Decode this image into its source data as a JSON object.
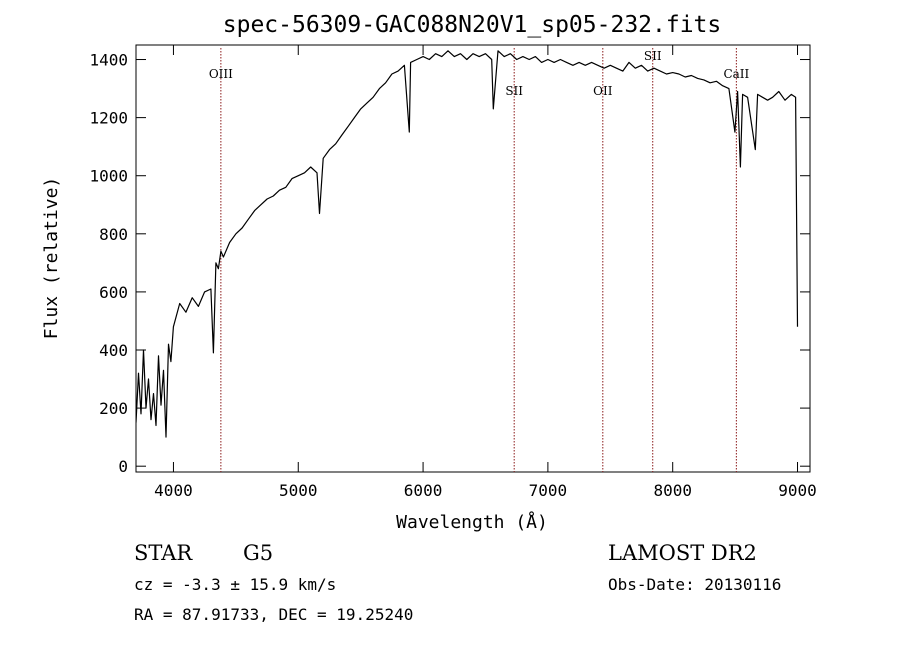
{
  "chart_data": {
    "type": "line",
    "title": "spec-56309-GAC088N20V1_sp05-232.fits",
    "xlabel": "Wavelength (Å)",
    "ylabel": "Flux (relative)",
    "xlim": [
      3700,
      9100
    ],
    "ylim": [
      -20,
      1450
    ],
    "xticks": [
      4000,
      5000,
      6000,
      7000,
      8000,
      9000
    ],
    "yticks": [
      0,
      200,
      400,
      600,
      800,
      1000,
      1200,
      1400
    ],
    "grid": false,
    "series": [
      {
        "color": "#000000",
        "x": [
          3700,
          3720,
          3740,
          3760,
          3780,
          3800,
          3820,
          3840,
          3860,
          3880,
          3900,
          3920,
          3940,
          3960,
          3980,
          4000,
          4050,
          4100,
          4150,
          4200,
          4250,
          4300,
          4320,
          4340,
          4360,
          4380,
          4400,
          4450,
          4500,
          4550,
          4600,
          4650,
          4700,
          4750,
          4800,
          4850,
          4900,
          4950,
          5000,
          5050,
          5100,
          5150,
          5170,
          5200,
          5250,
          5300,
          5350,
          5400,
          5450,
          5500,
          5550,
          5600,
          5650,
          5700,
          5750,
          5800,
          5850,
          5890,
          5900,
          5950,
          6000,
          6050,
          6100,
          6150,
          6200,
          6250,
          6300,
          6350,
          6400,
          6450,
          6500,
          6550,
          6563,
          6600,
          6650,
          6700,
          6750,
          6800,
          6850,
          6900,
          6950,
          7000,
          7050,
          7100,
          7150,
          7200,
          7250,
          7300,
          7350,
          7400,
          7450,
          7500,
          7550,
          7600,
          7650,
          7700,
          7750,
          7800,
          7850,
          7900,
          7950,
          8000,
          8050,
          8100,
          8150,
          8200,
          8250,
          8300,
          8350,
          8400,
          8450,
          8498,
          8520,
          8542,
          8560,
          8600,
          8662,
          8680,
          8720,
          8760,
          8800,
          8850,
          8900,
          8950,
          8985,
          9000
        ],
        "y": [
          150,
          320,
          180,
          400,
          200,
          300,
          160,
          250,
          140,
          380,
          210,
          330,
          100,
          420,
          360,
          480,
          560,
          530,
          580,
          550,
          600,
          610,
          390,
          700,
          680,
          740,
          720,
          770,
          800,
          820,
          850,
          880,
          900,
          920,
          930,
          950,
          960,
          990,
          1000,
          1010,
          1030,
          1010,
          870,
          1060,
          1090,
          1110,
          1140,
          1170,
          1200,
          1230,
          1250,
          1270,
          1300,
          1320,
          1350,
          1360,
          1380,
          1150,
          1390,
          1400,
          1410,
          1400,
          1420,
          1410,
          1430,
          1410,
          1420,
          1400,
          1420,
          1410,
          1420,
          1400,
          1230,
          1430,
          1410,
          1420,
          1400,
          1410,
          1400,
          1410,
          1390,
          1400,
          1390,
          1400,
          1390,
          1380,
          1390,
          1380,
          1390,
          1380,
          1370,
          1380,
          1370,
          1360,
          1390,
          1370,
          1380,
          1360,
          1370,
          1360,
          1350,
          1355,
          1350,
          1340,
          1345,
          1335,
          1330,
          1320,
          1325,
          1310,
          1300,
          1150,
          1290,
          1030,
          1280,
          1270,
          1090,
          1280,
          1270,
          1260,
          1270,
          1290,
          1260,
          1280,
          1270,
          480
        ]
      }
    ],
    "annotations": [
      {
        "x": 4380,
        "label": "OIII"
      },
      {
        "x": 6730,
        "label": "SII"
      },
      {
        "x": 7440,
        "label": "OII"
      },
      {
        "x": 7840,
        "label": "SII"
      },
      {
        "x": 8510,
        "label": "CaII"
      }
    ]
  },
  "info": {
    "object_class": "STAR",
    "subclass": "G5",
    "survey": "LAMOST DR2",
    "redshift_text": "cz = -3.3 ± 15.9 km/s",
    "obs_date_text": "Obs-Date: 20130116",
    "coords_text": "RA =  87.91733, DEC =  19.25240"
  }
}
